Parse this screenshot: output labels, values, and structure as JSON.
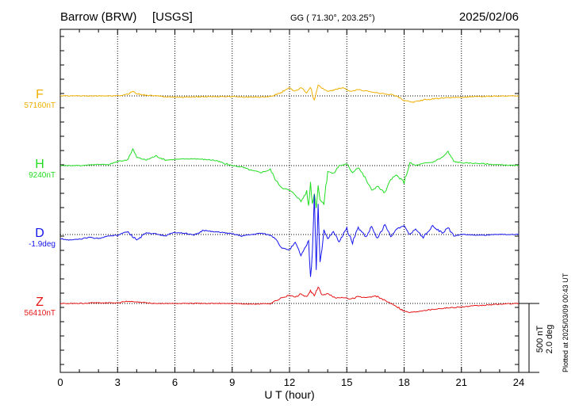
{
  "header": {
    "station": "Barrow (BRW)",
    "source": "[USGS]",
    "coords": "GG ( 71.30°, 203.25°)",
    "date": "2025/02/06"
  },
  "footer_note": "Plotted at 2025/03/09 00:43 UT",
  "colors": {
    "F": "#f0b000",
    "H": "#22dd22",
    "D": "#1515ee",
    "Z": "#e61515"
  },
  "chart_data": {
    "type": "line",
    "title": "Barrow (BRW) [USGS]",
    "xlabel": "U T (hour)",
    "ylabel": "",
    "xlim": [
      0,
      24
    ],
    "x_ticks": [
      "0",
      "3",
      "6",
      "9",
      "12",
      "15",
      "18",
      "21",
      "24"
    ],
    "grid": true,
    "scale_bar": {
      "label1": "500 nT",
      "label2": "2.0 deg",
      "nT": 500
    },
    "series": [
      {
        "name": "F",
        "baseline_label": "57160nT",
        "color": "#f0b000",
        "x": [
          0,
          1,
          2,
          3,
          3.5,
          3.8,
          4,
          4.5,
          5,
          6,
          7,
          8,
          9,
          10,
          11,
          11.5,
          12,
          12.3,
          12.6,
          12.9,
          13.1,
          13.3,
          13.5,
          13.7,
          14,
          14.4,
          14.8,
          15.2,
          15.6,
          16,
          16.5,
          17,
          17.5,
          18,
          18.5,
          19,
          20,
          21,
          22,
          23,
          24
        ],
        "y": [
          0,
          0,
          0,
          0,
          10,
          35,
          15,
          5,
          0,
          -10,
          -8,
          -5,
          -5,
          -10,
          -5,
          20,
          60,
          30,
          65,
          20,
          70,
          -40,
          80,
          55,
          30,
          45,
          60,
          30,
          45,
          35,
          25,
          15,
          5,
          -35,
          -45,
          -30,
          -15,
          -10,
          -5,
          0,
          0
        ]
      },
      {
        "name": "H",
        "baseline_label": "9240nT",
        "color": "#22dd22",
        "x": [
          0,
          1,
          2,
          2.5,
          3,
          3.5,
          3.8,
          4,
          4.5,
          5,
          5.5,
          6,
          7,
          8,
          9,
          9.5,
          10,
          10.5,
          11,
          11.3,
          11.6,
          12,
          12.3,
          12.6,
          12.9,
          13,
          13.1,
          13.2,
          13.3,
          13.4,
          13.5,
          13.6,
          13.8,
          14,
          14.3,
          14.6,
          15,
          15.3,
          15.6,
          16,
          16.3,
          16.6,
          17,
          17.3,
          17.6,
          18,
          18.3,
          18.6,
          19,
          19.5,
          20,
          20.3,
          20.6,
          21,
          22,
          23,
          24
        ],
        "y": [
          0,
          0,
          10,
          5,
          30,
          40,
          120,
          60,
          40,
          70,
          40,
          45,
          50,
          40,
          0,
          -10,
          -35,
          -50,
          -30,
          -110,
          -160,
          -180,
          -210,
          -260,
          -190,
          -300,
          -120,
          -280,
          -200,
          -300,
          -140,
          -250,
          -270,
          -40,
          -60,
          0,
          10,
          -50,
          -10,
          -100,
          -180,
          -150,
          -200,
          -100,
          -70,
          -120,
          20,
          0,
          15,
          25,
          60,
          100,
          30,
          20,
          15,
          5,
          0
        ]
      },
      {
        "name": "D",
        "baseline_label": "-1.9deg",
        "color": "#1515ee",
        "x": [
          0,
          0.5,
          1,
          1.5,
          2,
          2.5,
          3,
          3.5,
          4,
          4.5,
          5,
          5.5,
          6,
          6.5,
          7,
          7.5,
          8,
          8.5,
          9,
          9.5,
          10,
          10.5,
          11,
          11.3,
          11.6,
          12,
          12.3,
          12.6,
          12.9,
          13,
          13.1,
          13.2,
          13.3,
          13.4,
          13.5,
          13.6,
          13.7,
          13.8,
          14,
          14.3,
          14.6,
          15,
          15.3,
          15.6,
          16,
          16.3,
          16.6,
          17,
          17.3,
          17.6,
          18,
          18.3,
          18.6,
          19,
          19.5,
          20,
          20.3,
          20.6,
          21,
          22,
          23,
          24
        ],
        "y": [
          -30,
          -40,
          -35,
          -20,
          -30,
          -10,
          -5,
          20,
          -40,
          10,
          5,
          -10,
          15,
          10,
          -5,
          30,
          20,
          15,
          5,
          -10,
          0,
          10,
          -5,
          -30,
          -100,
          -110,
          -60,
          -150,
          -80,
          -40,
          -320,
          -120,
          300,
          -240,
          220,
          -200,
          -120,
          30,
          -30,
          20,
          -50,
          40,
          -60,
          50,
          -20,
          60,
          -30,
          70,
          -20,
          40,
          60,
          0,
          40,
          -20,
          60,
          10,
          50,
          -10,
          0,
          -5,
          0,
          0
        ]
      },
      {
        "name": "Z",
        "baseline_label": "56410nT",
        "color": "#e61515",
        "x": [
          0,
          1,
          2,
          3,
          3.5,
          4,
          4.5,
          5,
          6,
          7,
          8,
          9,
          10,
          11,
          11.5,
          12,
          12.3,
          12.6,
          12.9,
          13.1,
          13.3,
          13.5,
          13.7,
          14,
          14.4,
          14.8,
          15.2,
          15.6,
          16,
          16.5,
          17,
          17.5,
          18,
          18.3,
          18.6,
          19,
          20,
          21,
          22,
          23,
          24
        ],
        "y": [
          0,
          0,
          5,
          5,
          15,
          10,
          5,
          0,
          0,
          0,
          0,
          0,
          -5,
          0,
          35,
          60,
          45,
          70,
          45,
          90,
          55,
          120,
          60,
          70,
          40,
          45,
          30,
          50,
          40,
          55,
          20,
          -10,
          -55,
          -65,
          -60,
          -50,
          -35,
          -25,
          -15,
          -5,
          0
        ]
      }
    ]
  }
}
